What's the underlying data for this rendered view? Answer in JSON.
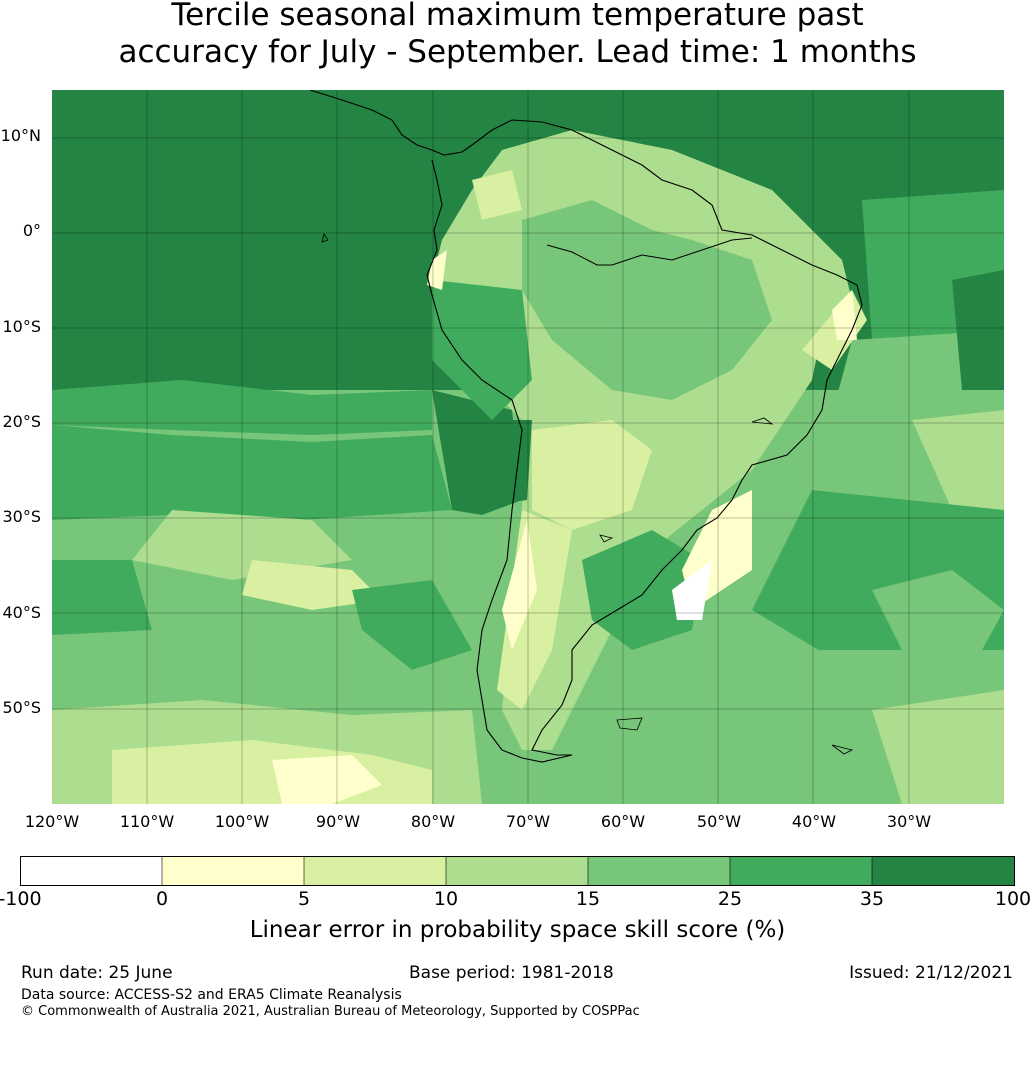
{
  "title": {
    "line1": "Tercile seasonal maximum temperature past",
    "line2": "accuracy for July - September. Lead time: 1 months"
  },
  "map": {
    "lat_labels": [
      "10°N",
      "0°",
      "10°S",
      "20°S",
      "30°S",
      "40°S",
      "50°S"
    ],
    "lon_labels": [
      "120°W",
      "110°W",
      "100°W",
      "90°W",
      "80°W",
      "70°W",
      "60°W",
      "50°W",
      "40°W",
      "30°W"
    ],
    "lat_range": [
      -60,
      15
    ],
    "lon_range": [
      -120,
      -20
    ],
    "gridlines": true
  },
  "colorbar": {
    "ticks": [
      "-100",
      "0",
      "5",
      "10",
      "15",
      "25",
      "35",
      "100"
    ],
    "colors": [
      "#ffffff",
      "#ffffcc",
      "#d9f0a3",
      "#addd8e",
      "#78c679",
      "#41ab5d",
      "#238443"
    ],
    "label": "Linear error in probability space skill score (%)"
  },
  "footer": {
    "run_date": "Run date: 25 June",
    "base_period": "Base period: 1981-2018",
    "issued": "Issued: 21/12/2021",
    "data_source": "Data source: ACCESS-S2 and ERA5 Climate Reanalysis",
    "copyright": "© Commonwealth of Australia 2021, Australian Bureau of Meteorology, Supported by COSPPac"
  }
}
